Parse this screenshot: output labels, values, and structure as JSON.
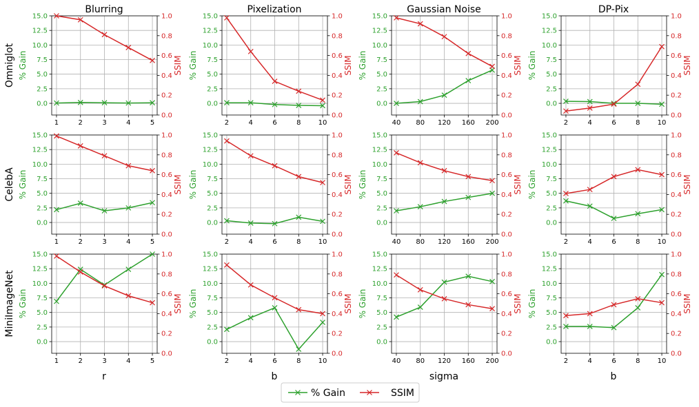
{
  "figure": {
    "col_titles": [
      "Blurring",
      "Pixelization",
      "Gaussian Noise",
      "DP-Pix"
    ],
    "row_labels": [
      "Omniglot",
      "CelebA",
      "MiniImageNet"
    ],
    "xlabels": [
      "r",
      "b",
      "sigma",
      "b"
    ],
    "left_ylabel": "% Gain",
    "right_ylabel": "SSIM",
    "legend": [
      "% Gain",
      "SSIM"
    ],
    "colors": {
      "gain": "#2ca02c",
      "ssim": "#d62728",
      "grid": "#b0b0b0",
      "axis": "#000000"
    }
  },
  "chart_data": [
    {
      "type": "line",
      "title": "Blurring",
      "row": "Omniglot",
      "x": [
        1,
        2,
        3,
        4,
        5
      ],
      "x_ticks": [
        1,
        2,
        3,
        4,
        5
      ],
      "xlim": [
        0.8,
        5.2
      ],
      "series": [
        {
          "name": "% Gain",
          "axis": "left",
          "values": [
            0.05,
            0.15,
            0.1,
            0.05,
            0.1
          ]
        },
        {
          "name": "SSIM",
          "axis": "right",
          "values": [
            1.0,
            0.96,
            0.81,
            0.68,
            0.55
          ]
        }
      ],
      "left_ylim": [
        -2,
        15
      ],
      "left_ticks": [
        0,
        2.5,
        5,
        7.5,
        10,
        12.5,
        15
      ],
      "right_ylim": [
        0,
        1
      ],
      "right_ticks": [
        0,
        0.2,
        0.4,
        0.6,
        0.8,
        1.0
      ]
    },
    {
      "type": "line",
      "title": "Pixelization",
      "row": "Omniglot",
      "x": [
        2,
        4,
        6,
        8,
        10
      ],
      "x_ticks": [
        2,
        4,
        6,
        8,
        10
      ],
      "xlim": [
        1.6,
        10.4
      ],
      "series": [
        {
          "name": "% Gain",
          "axis": "left",
          "values": [
            0.1,
            0.1,
            -0.2,
            -0.35,
            -0.4
          ]
        },
        {
          "name": "SSIM",
          "axis": "right",
          "values": [
            0.98,
            0.64,
            0.34,
            0.24,
            0.15
          ]
        }
      ],
      "left_ylim": [
        -2,
        15
      ],
      "left_ticks": [
        0,
        2.5,
        5,
        7.5,
        10,
        12.5,
        15
      ],
      "right_ylim": [
        0,
        1
      ],
      "right_ticks": [
        0,
        0.2,
        0.4,
        0.6,
        0.8,
        1.0
      ]
    },
    {
      "type": "line",
      "title": "Gaussian Noise",
      "row": "Omniglot",
      "x": [
        40,
        80,
        120,
        160,
        200
      ],
      "x_ticks": [
        40,
        80,
        120,
        160,
        200
      ],
      "xlim": [
        32,
        208
      ],
      "series": [
        {
          "name": "% Gain",
          "axis": "left",
          "values": [
            0.0,
            0.3,
            1.4,
            3.9,
            5.7
          ]
        },
        {
          "name": "SSIM",
          "axis": "right",
          "values": [
            0.98,
            0.92,
            0.79,
            0.62,
            0.49
          ]
        }
      ],
      "left_ylim": [
        -2,
        15
      ],
      "left_ticks": [
        0,
        2.5,
        5,
        7.5,
        10,
        12.5,
        15
      ],
      "right_ylim": [
        0,
        1
      ],
      "right_ticks": [
        0,
        0.2,
        0.4,
        0.6,
        0.8,
        1.0
      ]
    },
    {
      "type": "line",
      "title": "DP-Pix",
      "row": "Omniglot",
      "x": [
        2,
        4,
        6,
        8,
        10
      ],
      "x_ticks": [
        2,
        4,
        6,
        8,
        10
      ],
      "xlim": [
        1.6,
        10.4
      ],
      "series": [
        {
          "name": "% Gain",
          "axis": "left",
          "values": [
            0.35,
            0.3,
            0.0,
            0.0,
            -0.15
          ]
        },
        {
          "name": "SSIM",
          "axis": "right",
          "values": [
            0.04,
            0.07,
            0.11,
            0.31,
            0.69
          ]
        }
      ],
      "left_ylim": [
        -2,
        15
      ],
      "left_ticks": [
        0,
        2.5,
        5,
        7.5,
        10,
        12.5,
        15
      ],
      "right_ylim": [
        0,
        1
      ],
      "right_ticks": [
        0,
        0.2,
        0.4,
        0.6,
        0.8,
        1.0
      ]
    },
    {
      "type": "line",
      "title": "Blurring",
      "row": "CelebA",
      "x": [
        1,
        2,
        3,
        4,
        5
      ],
      "x_ticks": [
        1,
        2,
        3,
        4,
        5
      ],
      "xlim": [
        0.8,
        5.2
      ],
      "series": [
        {
          "name": "% Gain",
          "axis": "left",
          "values": [
            2.2,
            3.3,
            2.0,
            2.5,
            3.4
          ]
        },
        {
          "name": "SSIM",
          "axis": "right",
          "values": [
            0.99,
            0.89,
            0.79,
            0.69,
            0.64
          ]
        }
      ],
      "left_ylim": [
        -2,
        15
      ],
      "left_ticks": [
        0,
        2.5,
        5,
        7.5,
        10,
        12.5,
        15
      ],
      "right_ylim": [
        0,
        1
      ],
      "right_ticks": [
        0,
        0.2,
        0.4,
        0.6,
        0.8,
        1.0
      ]
    },
    {
      "type": "line",
      "title": "Pixelization",
      "row": "CelebA",
      "x": [
        2,
        4,
        6,
        8,
        10
      ],
      "x_ticks": [
        2,
        4,
        6,
        8,
        10
      ],
      "xlim": [
        1.6,
        10.4
      ],
      "series": [
        {
          "name": "% Gain",
          "axis": "left",
          "values": [
            0.3,
            -0.1,
            -0.2,
            0.9,
            0.2
          ]
        },
        {
          "name": "SSIM",
          "axis": "right",
          "values": [
            0.94,
            0.79,
            0.69,
            0.58,
            0.52
          ]
        }
      ],
      "left_ylim": [
        -2,
        15
      ],
      "left_ticks": [
        0,
        2.5,
        5,
        7.5,
        10,
        12.5,
        15
      ],
      "right_ylim": [
        0,
        1
      ],
      "right_ticks": [
        0,
        0.2,
        0.4,
        0.6,
        0.8,
        1.0
      ]
    },
    {
      "type": "line",
      "title": "Gaussian Noise",
      "row": "CelebA",
      "x": [
        40,
        80,
        120,
        160,
        200
      ],
      "x_ticks": [
        40,
        80,
        120,
        160,
        200
      ],
      "xlim": [
        32,
        208
      ],
      "series": [
        {
          "name": "% Gain",
          "axis": "left",
          "values": [
            2.0,
            2.7,
            3.6,
            4.3,
            5.0
          ]
        },
        {
          "name": "SSIM",
          "axis": "right",
          "values": [
            0.82,
            0.72,
            0.64,
            0.58,
            0.54
          ]
        }
      ],
      "left_ylim": [
        -2,
        15
      ],
      "left_ticks": [
        0,
        2.5,
        5,
        7.5,
        10,
        12.5,
        15
      ],
      "right_ylim": [
        0,
        1
      ],
      "right_ticks": [
        0,
        0.2,
        0.4,
        0.6,
        0.8,
        1.0
      ]
    },
    {
      "type": "line",
      "title": "DP-Pix",
      "row": "CelebA",
      "x": [
        2,
        4,
        6,
        8,
        10
      ],
      "x_ticks": [
        2,
        4,
        6,
        8,
        10
      ],
      "xlim": [
        1.6,
        10.4
      ],
      "series": [
        {
          "name": "% Gain",
          "axis": "left",
          "values": [
            3.7,
            2.8,
            0.7,
            1.5,
            2.2
          ]
        },
        {
          "name": "SSIM",
          "axis": "right",
          "values": [
            0.41,
            0.45,
            0.58,
            0.65,
            0.6
          ]
        }
      ],
      "left_ylim": [
        -2,
        15
      ],
      "left_ticks": [
        0,
        2.5,
        5,
        7.5,
        10,
        12.5,
        15
      ],
      "right_ylim": [
        0,
        1
      ],
      "right_ticks": [
        0,
        0.2,
        0.4,
        0.6,
        0.8,
        1.0
      ]
    },
    {
      "type": "line",
      "title": "Blurring",
      "row": "MiniImageNet",
      "x": [
        1,
        2,
        3,
        4,
        5
      ],
      "x_ticks": [
        1,
        2,
        3,
        4,
        5
      ],
      "xlim": [
        0.8,
        5.2
      ],
      "series": [
        {
          "name": "% Gain",
          "axis": "left",
          "values": [
            6.9,
            12.4,
            9.7,
            12.4,
            15.0
          ]
        },
        {
          "name": "SSIM",
          "axis": "right",
          "values": [
            0.98,
            0.82,
            0.68,
            0.58,
            0.51
          ]
        }
      ],
      "left_ylim": [
        -2,
        15
      ],
      "left_ticks": [
        0,
        2.5,
        5,
        7.5,
        10,
        12.5,
        15
      ],
      "right_ylim": [
        0,
        1
      ],
      "right_ticks": [
        0,
        0.2,
        0.4,
        0.6,
        0.8,
        1.0
      ]
    },
    {
      "type": "line",
      "title": "Pixelization",
      "row": "MiniImageNet",
      "x": [
        2,
        4,
        6,
        8,
        10
      ],
      "x_ticks": [
        2,
        4,
        6,
        8,
        10
      ],
      "xlim": [
        1.6,
        10.4
      ],
      "series": [
        {
          "name": "% Gain",
          "axis": "left",
          "values": [
            2.1,
            4.1,
            5.8,
            -1.3,
            3.3
          ]
        },
        {
          "name": "SSIM",
          "axis": "right",
          "values": [
            0.89,
            0.69,
            0.56,
            0.44,
            0.4
          ]
        }
      ],
      "left_ylim": [
        -2,
        15
      ],
      "left_ticks": [
        0,
        2.5,
        5,
        7.5,
        10,
        12.5,
        15
      ],
      "right_ylim": [
        0,
        1
      ],
      "right_ticks": [
        0,
        0.2,
        0.4,
        0.6,
        0.8,
        1.0
      ]
    },
    {
      "type": "line",
      "title": "Gaussian Noise",
      "row": "MiniImageNet",
      "x": [
        40,
        80,
        120,
        160,
        200
      ],
      "x_ticks": [
        40,
        80,
        120,
        160,
        200
      ],
      "xlim": [
        32,
        208
      ],
      "series": [
        {
          "name": "% Gain",
          "axis": "left",
          "values": [
            4.2,
            5.9,
            10.2,
            11.2,
            10.3
          ]
        },
        {
          "name": "SSIM",
          "axis": "right",
          "values": [
            0.79,
            0.64,
            0.55,
            0.49,
            0.45
          ]
        }
      ],
      "left_ylim": [
        -2,
        15
      ],
      "left_ticks": [
        0,
        2.5,
        5,
        7.5,
        10,
        12.5,
        15
      ],
      "right_ylim": [
        0,
        1
      ],
      "right_ticks": [
        0,
        0.2,
        0.4,
        0.6,
        0.8,
        1.0
      ]
    },
    {
      "type": "line",
      "title": "DP-Pix",
      "row": "MiniImageNet",
      "x": [
        2,
        4,
        6,
        8,
        10
      ],
      "x_ticks": [
        2,
        4,
        6,
        8,
        10
      ],
      "xlim": [
        1.6,
        10.4
      ],
      "series": [
        {
          "name": "% Gain",
          "axis": "left",
          "values": [
            2.6,
            2.6,
            2.4,
            5.8,
            11.5
          ]
        },
        {
          "name": "SSIM",
          "axis": "right",
          "values": [
            0.38,
            0.4,
            0.49,
            0.55,
            0.51
          ]
        }
      ],
      "left_ylim": [
        -2,
        15
      ],
      "left_ticks": [
        0,
        2.5,
        5,
        7.5,
        10,
        12.5,
        15
      ],
      "right_ylim": [
        0,
        1
      ],
      "right_ticks": [
        0,
        0.2,
        0.4,
        0.6,
        0.8,
        1.0
      ]
    }
  ]
}
